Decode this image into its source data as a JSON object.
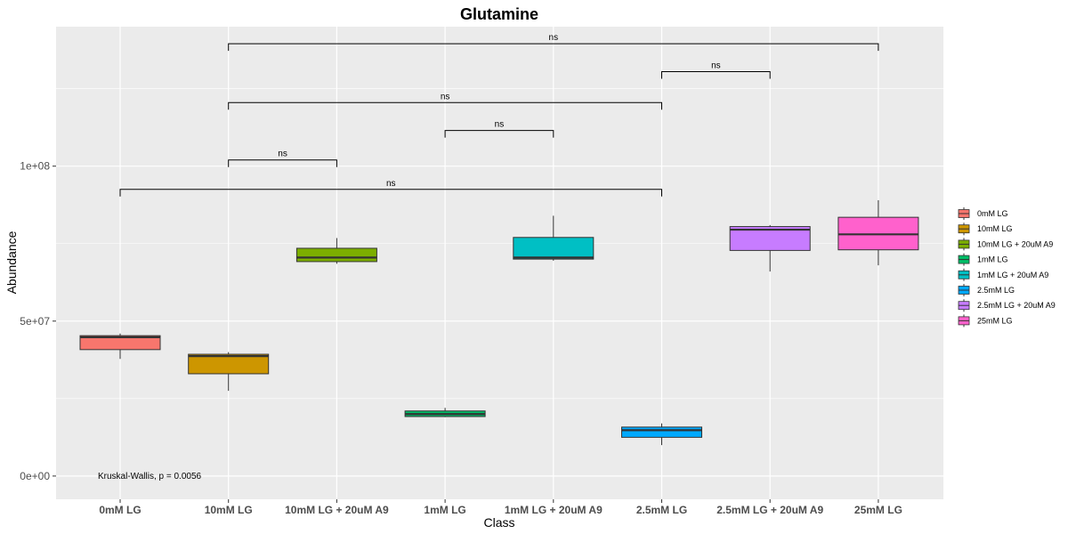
{
  "chart_data": {
    "type": "box",
    "title": "Glutamine",
    "xlabel": "Class",
    "ylabel": "Abundance",
    "ylim": [
      -7500000,
      145000000
    ],
    "y_ticks": [
      0,
      50000000,
      100000000
    ],
    "y_tick_labels": [
      "0e+00",
      "5e+07",
      "1e+08"
    ],
    "grid": true,
    "legend_position": "right",
    "categories": [
      "0mM LG",
      "10mM LG",
      "10mM LG + 20uM A9",
      "1mM LG",
      "1mM LG + 20uM A9",
      "2.5mM LG",
      "2.5mM LG + 20uM A9",
      "25mM LG"
    ],
    "boxes": [
      {
        "name": "0mM LG",
        "color": "#F8766D",
        "min": 37800000,
        "q1": 40800000,
        "median": 44800000,
        "q3": 45300000,
        "max": 46000000
      },
      {
        "name": "10mM LG",
        "color": "#CD9600",
        "min": 27500000,
        "q1": 33000000,
        "median": 38700000,
        "q3": 39300000,
        "max": 40000000
      },
      {
        "name": "10mM LG + 20uM A9",
        "color": "#7CAE00",
        "min": 68500000,
        "q1": 69200000,
        "median": 70500000,
        "q3": 73500000,
        "max": 76800000
      },
      {
        "name": "1mM LG",
        "color": "#00BE67",
        "min": 19000000,
        "q1": 19200000,
        "median": 20000000,
        "q3": 21000000,
        "max": 22000000
      },
      {
        "name": "1mM LG + 20uM A9",
        "color": "#00BFC4",
        "min": 69500000,
        "q1": 70000000,
        "median": 70500000,
        "q3": 77000000,
        "max": 84000000
      },
      {
        "name": "2.5mM LG",
        "color": "#00A9FF",
        "min": 10000000,
        "q1": 12500000,
        "median": 14800000,
        "q3": 15800000,
        "max": 17000000
      },
      {
        "name": "2.5mM LG + 20uM A9",
        "color": "#C77CFF",
        "min": 66000000,
        "q1": 72800000,
        "median": 79500000,
        "q3": 80500000,
        "max": 81000000
      },
      {
        "name": "25mM LG",
        "color": "#FF61CC",
        "min": 68000000,
        "q1": 73000000,
        "median": 78000000,
        "q3": 83500000,
        "max": 89000000
      }
    ],
    "comparisons": [
      {
        "from": 1,
        "to": 7,
        "y": 139500000,
        "label": "ns"
      },
      {
        "from": 5,
        "to": 6,
        "y": 130500000,
        "label": "ns"
      },
      {
        "from": 1,
        "to": 5,
        "y": 120500000,
        "label": "ns"
      },
      {
        "from": 3,
        "to": 4,
        "y": 111500000,
        "label": "ns"
      },
      {
        "from": 1,
        "to": 2,
        "y": 102000000,
        "label": "ns"
      },
      {
        "from": 0,
        "to": 5,
        "y": 92500000,
        "label": "ns"
      }
    ],
    "annotation": {
      "text": "Kruskal-Wallis, p = 0.0056",
      "y": 750000
    }
  }
}
